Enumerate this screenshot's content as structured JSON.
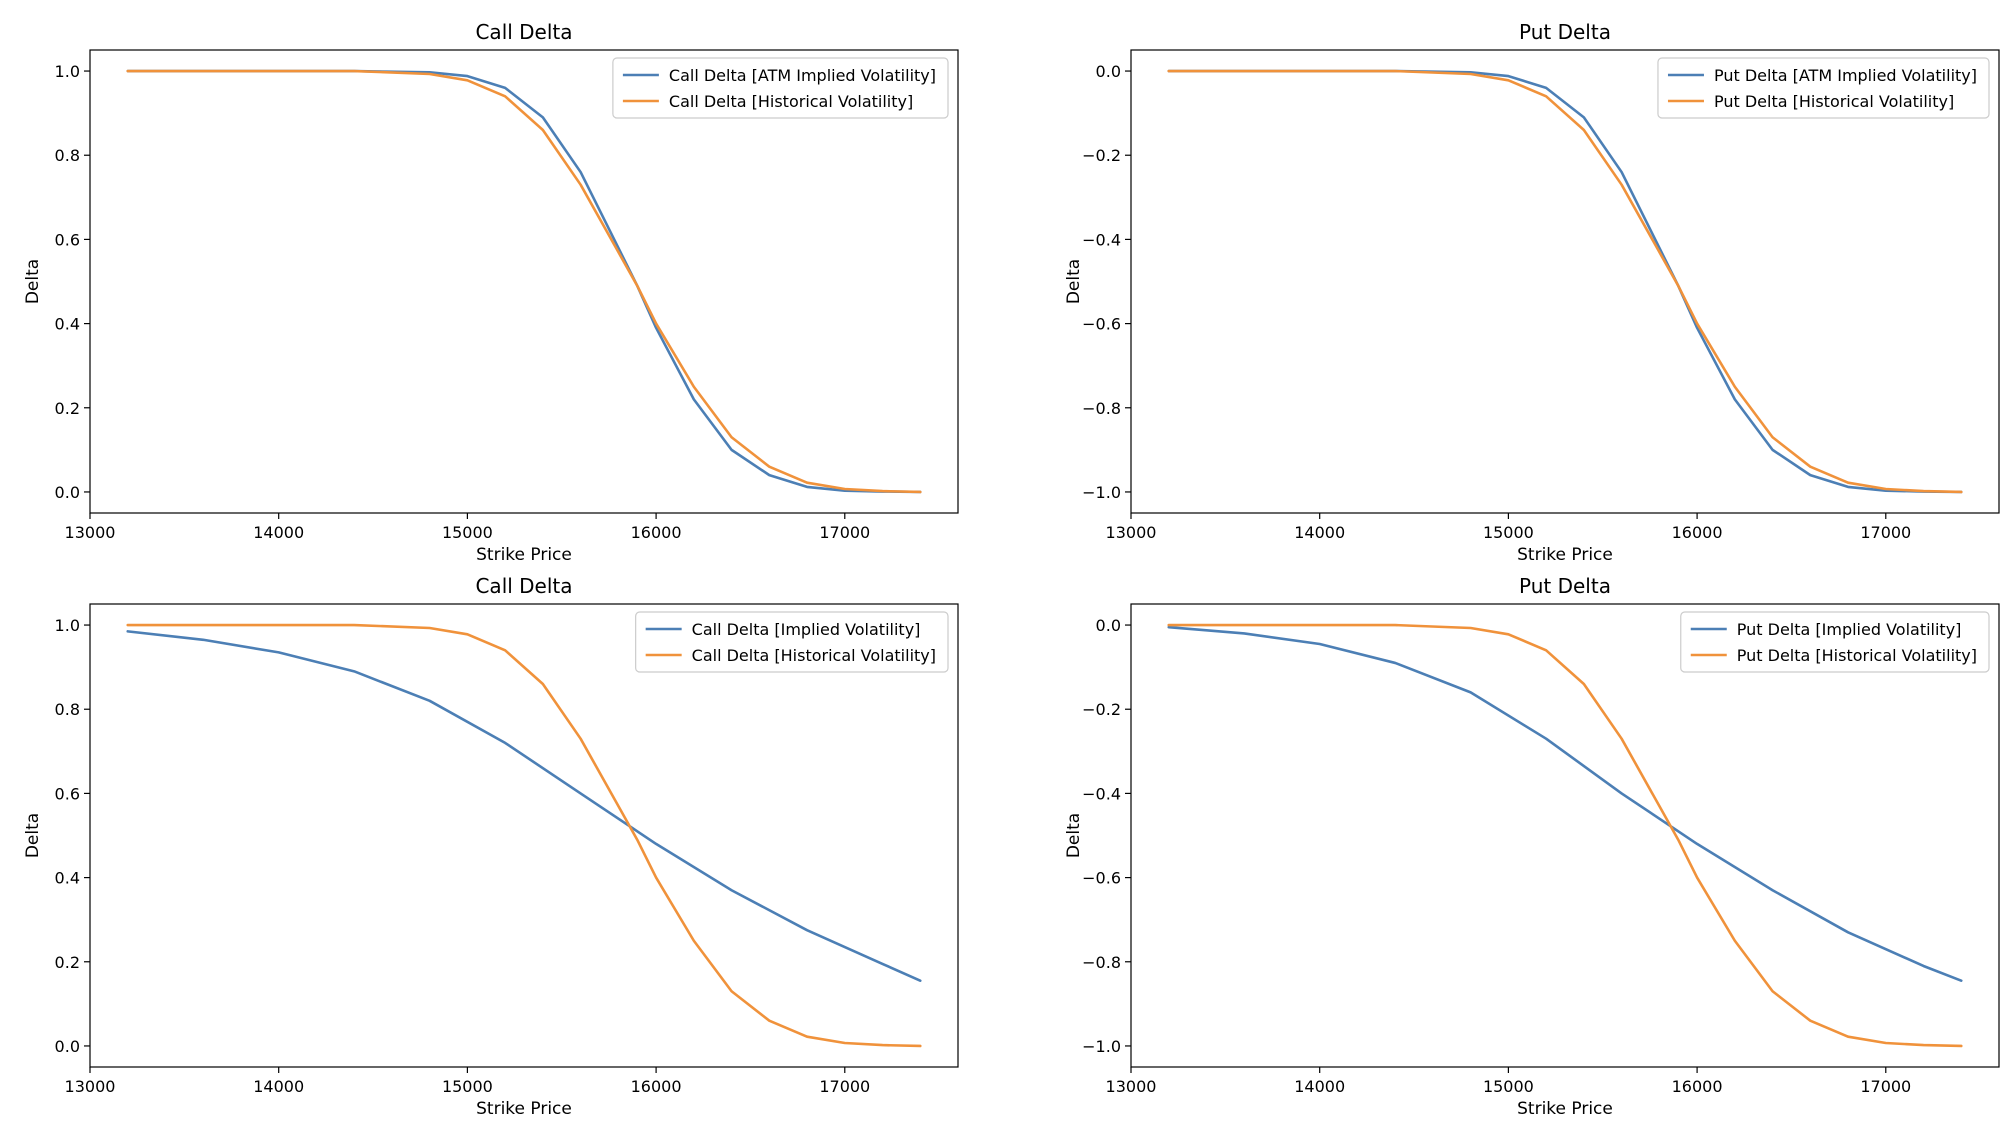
{
  "colors": {
    "series_1": "#4c7fb5",
    "series_2": "#f0923b",
    "axis": "#000000",
    "background": "#ffffff"
  },
  "chart_data": [
    {
      "type": "line",
      "title": "Call Delta",
      "xlabel": "Strike Price",
      "ylabel": "Delta",
      "xlim": [
        13000,
        17600
      ],
      "ylim": [
        -0.05,
        1.05
      ],
      "xticks": [
        13000,
        14000,
        15000,
        16000,
        17000
      ],
      "yticks": [
        0.0,
        0.2,
        0.4,
        0.6,
        0.8,
        1.0
      ],
      "ytick_labels": [
        "0.0",
        "0.2",
        "0.4",
        "0.6",
        "0.8",
        "1.0"
      ],
      "grid": false,
      "legend_position": "top-right",
      "series": [
        {
          "name": "Call Delta [ATM Implied Volatility]",
          "color": "#4c7fb5",
          "x": [
            13200,
            13600,
            14000,
            14400,
            14800,
            15000,
            15200,
            15400,
            15600,
            15800,
            15900,
            16000,
            16200,
            16400,
            16600,
            16800,
            17000,
            17200,
            17400
          ],
          "y": [
            1.0,
            1.0,
            1.0,
            1.0,
            0.997,
            0.988,
            0.96,
            0.89,
            0.76,
            0.58,
            0.49,
            0.39,
            0.22,
            0.1,
            0.04,
            0.012,
            0.003,
            0.001,
            0.0
          ]
        },
        {
          "name": "Call Delta [Historical Volatility]",
          "color": "#f0923b",
          "x": [
            13200,
            13600,
            14000,
            14400,
            14800,
            15000,
            15200,
            15400,
            15600,
            15800,
            15900,
            16000,
            16200,
            16400,
            16600,
            16800,
            17000,
            17200,
            17400
          ],
          "y": [
            1.0,
            1.0,
            1.0,
            1.0,
            0.993,
            0.978,
            0.94,
            0.86,
            0.73,
            0.57,
            0.49,
            0.4,
            0.25,
            0.13,
            0.06,
            0.022,
            0.007,
            0.002,
            0.0
          ]
        }
      ]
    },
    {
      "type": "line",
      "title": "Put Delta",
      "xlabel": "Strike Price",
      "ylabel": "Delta",
      "xlim": [
        13000,
        17600
      ],
      "ylim": [
        -1.05,
        0.05
      ],
      "xticks": [
        13000,
        14000,
        15000,
        16000,
        17000
      ],
      "yticks": [
        -1.0,
        -0.8,
        -0.6,
        -0.4,
        -0.2,
        0.0
      ],
      "ytick_labels": [
        "−1.0",
        "−0.8",
        "−0.6",
        "−0.4",
        "−0.2",
        "0.0"
      ],
      "grid": false,
      "legend_position": "top-right",
      "series": [
        {
          "name": "Put Delta [ATM Implied Volatility]",
          "color": "#4c7fb5",
          "x": [
            13200,
            13600,
            14000,
            14400,
            14800,
            15000,
            15200,
            15400,
            15600,
            15800,
            15900,
            16000,
            16200,
            16400,
            16600,
            16800,
            17000,
            17200,
            17400
          ],
          "y": [
            0.0,
            0.0,
            0.0,
            0.0,
            -0.003,
            -0.012,
            -0.04,
            -0.11,
            -0.24,
            -0.42,
            -0.51,
            -0.61,
            -0.78,
            -0.9,
            -0.96,
            -0.988,
            -0.997,
            -0.999,
            -1.0
          ]
        },
        {
          "name": "Put Delta [Historical Volatility]",
          "color": "#f0923b",
          "x": [
            13200,
            13600,
            14000,
            14400,
            14800,
            15000,
            15200,
            15400,
            15600,
            15800,
            15900,
            16000,
            16200,
            16400,
            16600,
            16800,
            17000,
            17200,
            17400
          ],
          "y": [
            0.0,
            0.0,
            0.0,
            0.0,
            -0.007,
            -0.022,
            -0.06,
            -0.14,
            -0.27,
            -0.43,
            -0.51,
            -0.6,
            -0.75,
            -0.87,
            -0.94,
            -0.978,
            -0.993,
            -0.998,
            -1.0
          ]
        }
      ]
    },
    {
      "type": "line",
      "title": "Call Delta",
      "xlabel": "Strike Price",
      "ylabel": "Delta",
      "xlim": [
        13000,
        17600
      ],
      "ylim": [
        -0.05,
        1.05
      ],
      "xticks": [
        13000,
        14000,
        15000,
        16000,
        17000
      ],
      "yticks": [
        0.0,
        0.2,
        0.4,
        0.6,
        0.8,
        1.0
      ],
      "ytick_labels": [
        "0.0",
        "0.2",
        "0.4",
        "0.6",
        "0.8",
        "1.0"
      ],
      "grid": false,
      "legend_position": "top-right",
      "series": [
        {
          "name": "Call Delta [Implied Volatility]",
          "color": "#4c7fb5",
          "x": [
            13200,
            13600,
            14000,
            14400,
            14800,
            15200,
            15600,
            16000,
            16400,
            16800,
            17200,
            17400
          ],
          "y": [
            0.985,
            0.965,
            0.935,
            0.89,
            0.82,
            0.72,
            0.6,
            0.48,
            0.37,
            0.275,
            0.195,
            0.155
          ]
        },
        {
          "name": "Call Delta [Historical Volatility]",
          "color": "#f0923b",
          "x": [
            13200,
            13600,
            14000,
            14400,
            14800,
            15000,
            15200,
            15400,
            15600,
            15800,
            15900,
            16000,
            16200,
            16400,
            16600,
            16800,
            17000,
            17200,
            17400
          ],
          "y": [
            1.0,
            1.0,
            1.0,
            1.0,
            0.993,
            0.978,
            0.94,
            0.86,
            0.73,
            0.57,
            0.49,
            0.4,
            0.25,
            0.13,
            0.06,
            0.022,
            0.007,
            0.002,
            0.0
          ]
        }
      ]
    },
    {
      "type": "line",
      "title": "Put Delta",
      "xlabel": "Strike Price",
      "ylabel": "Delta",
      "xlim": [
        13000,
        17600
      ],
      "ylim": [
        -1.05,
        0.05
      ],
      "xticks": [
        13000,
        14000,
        15000,
        16000,
        17000
      ],
      "yticks": [
        -1.0,
        -0.8,
        -0.6,
        -0.4,
        -0.2,
        0.0
      ],
      "ytick_labels": [
        "−1.0",
        "−0.8",
        "−0.6",
        "−0.4",
        "−0.2",
        "0.0"
      ],
      "grid": false,
      "legend_position": "top-right",
      "series": [
        {
          "name": "Put Delta [Implied Volatility]",
          "color": "#4c7fb5",
          "x": [
            13200,
            13600,
            14000,
            14400,
            14800,
            15200,
            15600,
            16000,
            16400,
            16800,
            17200,
            17400
          ],
          "y": [
            -0.005,
            -0.02,
            -0.045,
            -0.09,
            -0.16,
            -0.27,
            -0.4,
            -0.52,
            -0.63,
            -0.73,
            -0.81,
            -0.845
          ]
        },
        {
          "name": "Put Delta [Historical Volatility]",
          "color": "#f0923b",
          "x": [
            13200,
            13600,
            14000,
            14400,
            14800,
            15000,
            15200,
            15400,
            15600,
            15800,
            15900,
            16000,
            16200,
            16400,
            16600,
            16800,
            17000,
            17200,
            17400
          ],
          "y": [
            0.0,
            0.0,
            0.0,
            0.0,
            -0.007,
            -0.022,
            -0.06,
            -0.14,
            -0.27,
            -0.43,
            -0.51,
            -0.6,
            -0.75,
            -0.87,
            -0.94,
            -0.978,
            -0.993,
            -0.998,
            -1.0
          ]
        }
      ]
    }
  ]
}
